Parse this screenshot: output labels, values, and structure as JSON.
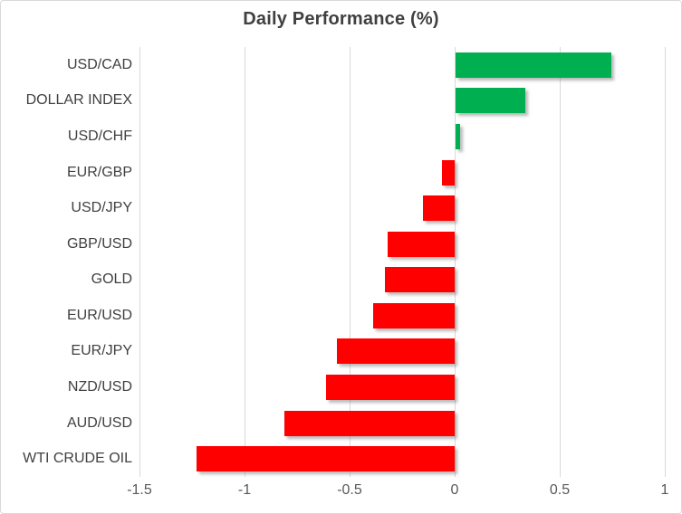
{
  "chart_data": {
    "type": "bar",
    "orientation": "horizontal",
    "title": "Daily Performance (%)",
    "categories": [
      "USD/CAD",
      "DOLLAR INDEX",
      "USD/CHF",
      "EUR/GBP",
      "USD/JPY",
      "GBP/USD",
      "GOLD",
      "EUR/USD",
      "EUR/JPY",
      "NZD/USD",
      "AUD/USD",
      "WTI CRUDE OIL"
    ],
    "values": [
      0.74,
      0.33,
      0.02,
      -0.06,
      -0.15,
      -0.32,
      -0.33,
      -0.39,
      -0.56,
      -0.61,
      -0.81,
      -1.23
    ],
    "xlim": [
      -1.5,
      1
    ],
    "x_ticks": [
      -1.5,
      -1,
      -0.5,
      0,
      0.5,
      1
    ],
    "x_tick_labels": [
      "-1.5",
      "-1",
      "-0.5",
      "0",
      "0.5",
      "1"
    ],
    "grid": true,
    "legend": false,
    "colors": {
      "positive": "#00B050",
      "negative": "#FF0000",
      "gridline": "#D9D9D9",
      "title_text": "#404040",
      "category_text": "#404040",
      "tick_text": "#595959",
      "border": "#D9D9D9"
    }
  }
}
